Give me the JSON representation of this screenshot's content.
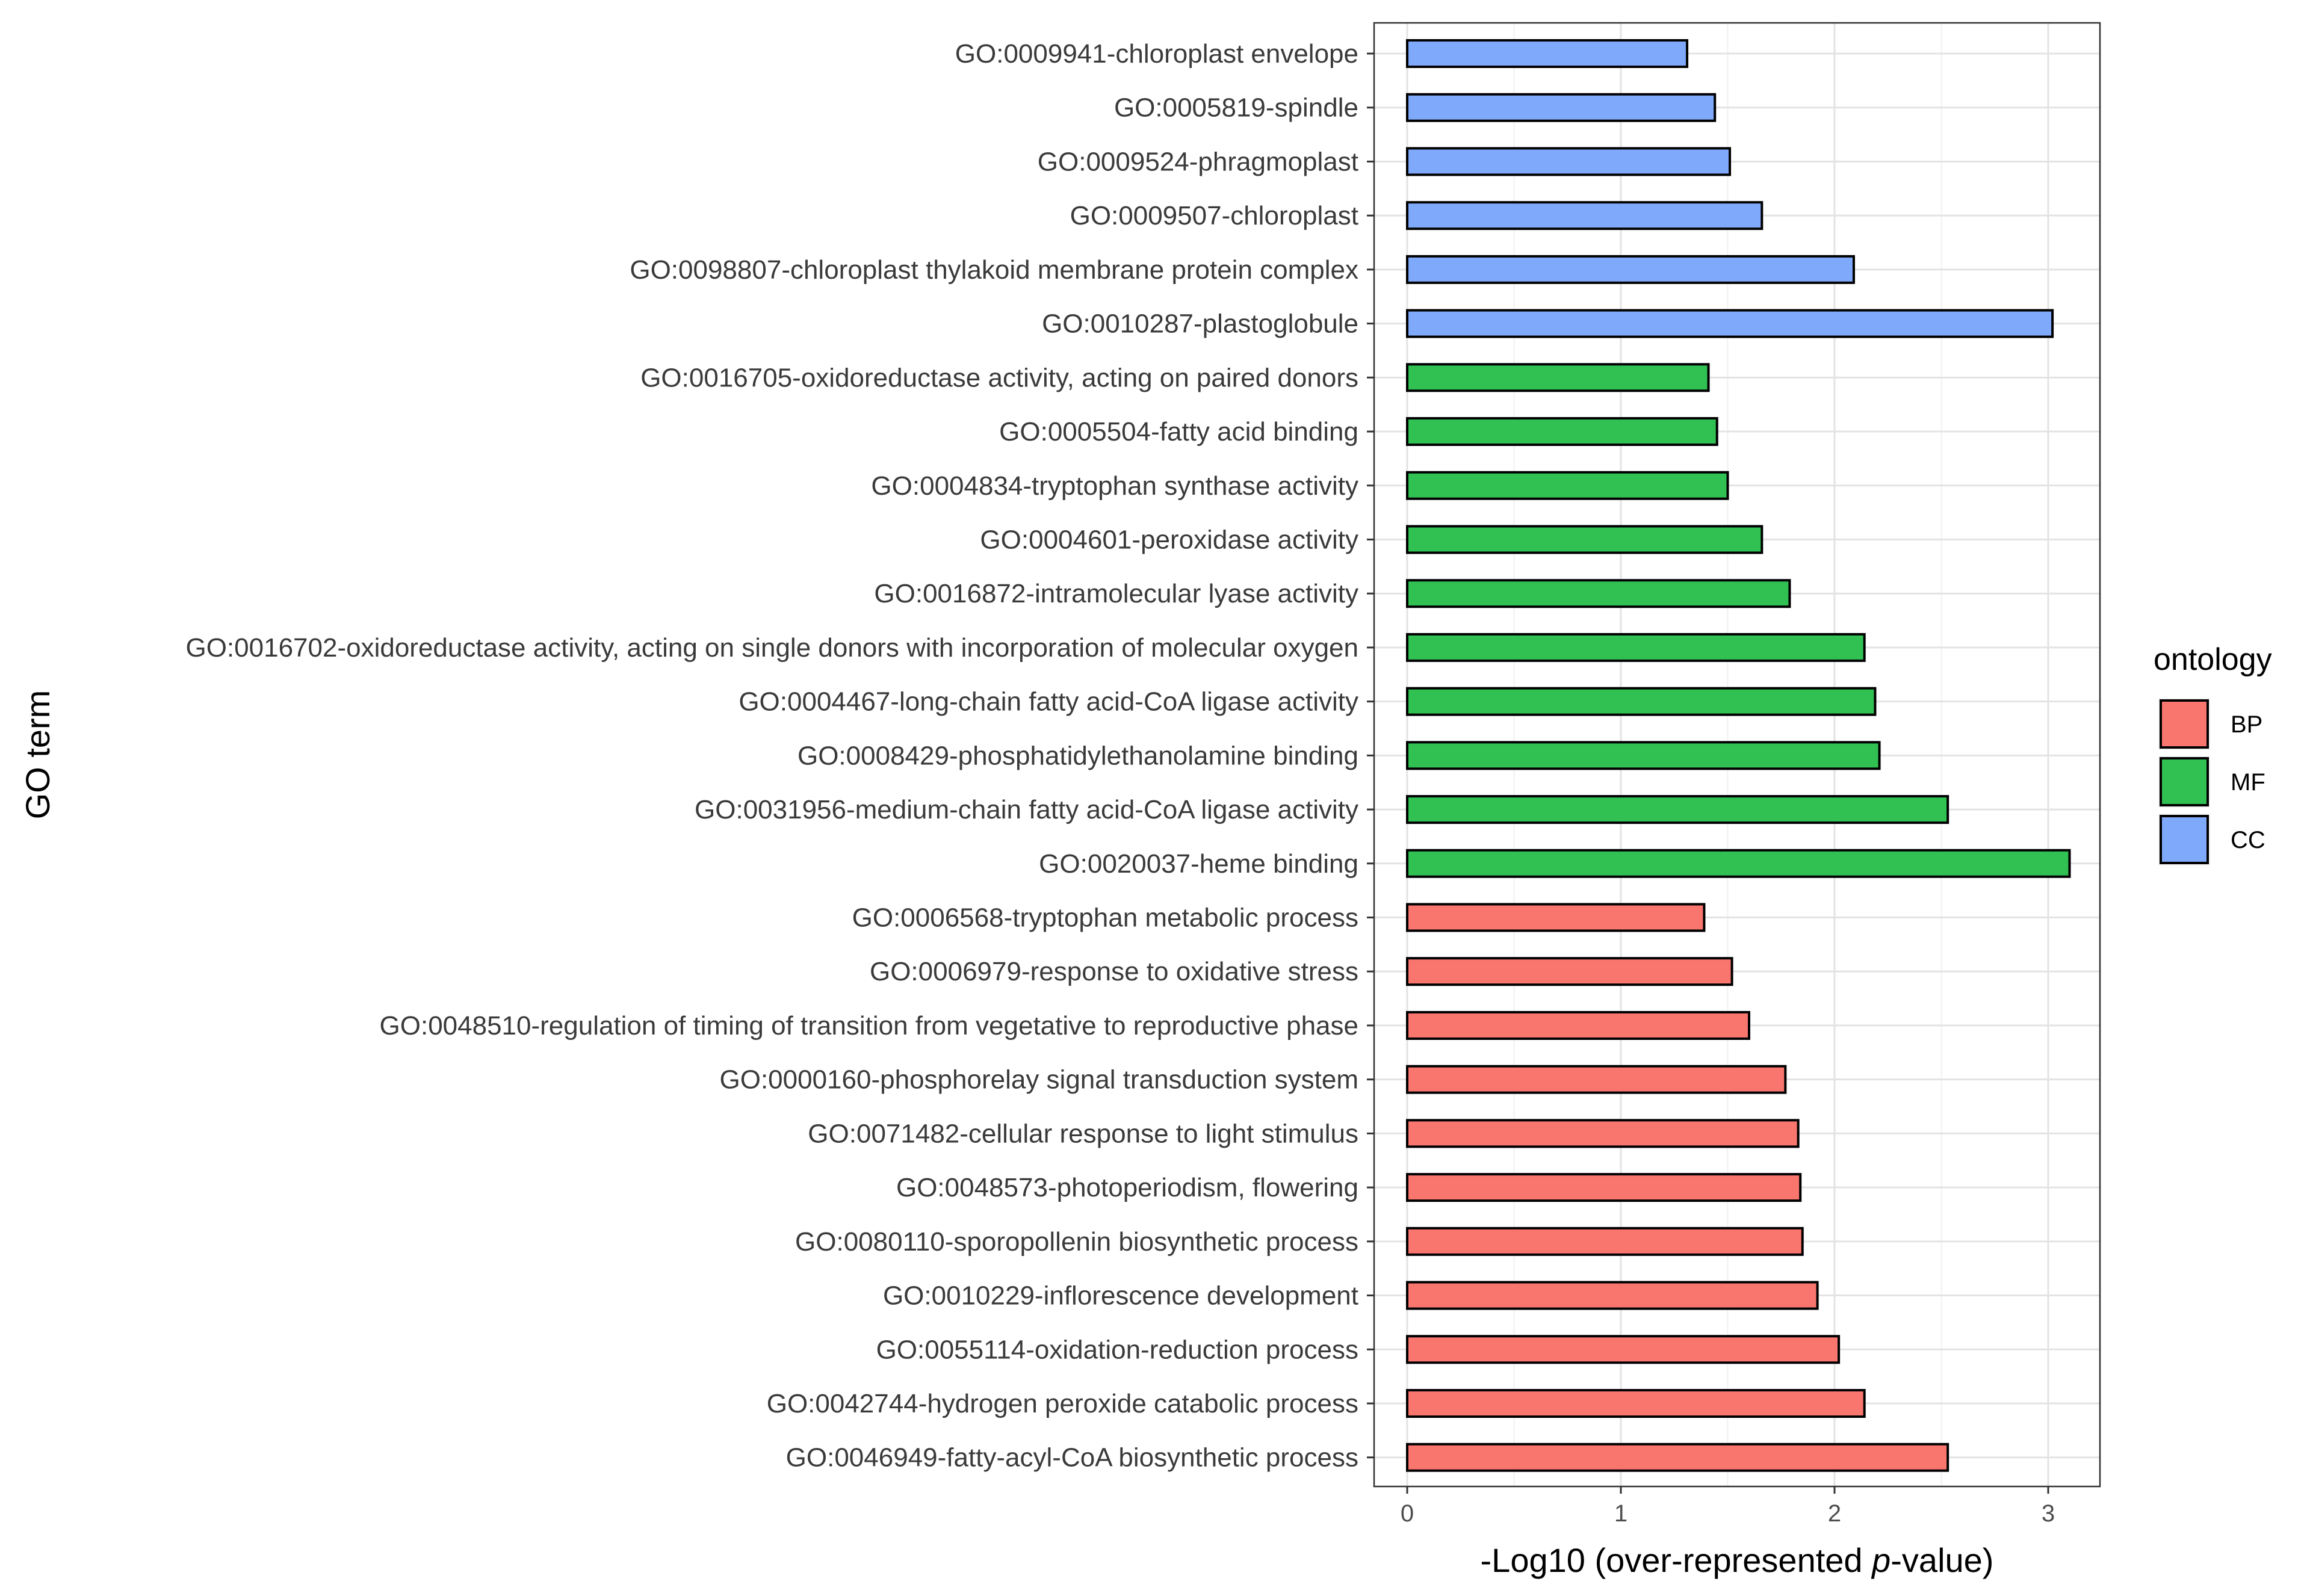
{
  "chart_data": {
    "type": "bar",
    "orientation": "horizontal",
    "xlabel_prefix": "-Log10 (over-represented ",
    "xlabel_italic": "p",
    "xlabel_suffix": "-value)",
    "ylabel": "GO term",
    "xlim": [
      -0.16,
      3.26
    ],
    "xticks": [
      0,
      1,
      2,
      3
    ],
    "grid": true,
    "legend": {
      "title": "ontology",
      "position": "right",
      "entries": [
        {
          "label": "BP",
          "color": "#F8766D"
        },
        {
          "label": "MF",
          "color": "#31C052"
        },
        {
          "label": "CC",
          "color": "#7FA9FA"
        }
      ]
    },
    "bars": [
      {
        "term": "GO:0009941-chloroplast envelope",
        "ontology": "CC",
        "value": 1.31
      },
      {
        "term": "GO:0005819-spindle",
        "ontology": "CC",
        "value": 1.44
      },
      {
        "term": "GO:0009524-phragmoplast",
        "ontology": "CC",
        "value": 1.51
      },
      {
        "term": "GO:0009507-chloroplast",
        "ontology": "CC",
        "value": 1.66
      },
      {
        "term": "GO:0098807-chloroplast thylakoid membrane protein complex",
        "ontology": "CC",
        "value": 2.09
      },
      {
        "term": "GO:0010287-plastoglobule",
        "ontology": "CC",
        "value": 3.02
      },
      {
        "term": "GO:0016705-oxidoreductase activity, acting on paired donors",
        "ontology": "MF",
        "value": 1.41
      },
      {
        "term": "GO:0005504-fatty acid binding",
        "ontology": "MF",
        "value": 1.45
      },
      {
        "term": "GO:0004834-tryptophan synthase activity",
        "ontology": "MF",
        "value": 1.5
      },
      {
        "term": "GO:0004601-peroxidase activity",
        "ontology": "MF",
        "value": 1.66
      },
      {
        "term": "GO:0016872-intramolecular lyase activity",
        "ontology": "MF",
        "value": 1.79
      },
      {
        "term": "GO:0016702-oxidoreductase activity, acting on single donors with incorporation of molecular oxygen",
        "ontology": "MF",
        "value": 2.14
      },
      {
        "term": "GO:0004467-long-chain fatty acid-CoA ligase activity",
        "ontology": "MF",
        "value": 2.19
      },
      {
        "term": "GO:0008429-phosphatidylethanolamine binding",
        "ontology": "MF",
        "value": 2.21
      },
      {
        "term": "GO:0031956-medium-chain fatty acid-CoA ligase activity",
        "ontology": "MF",
        "value": 2.53
      },
      {
        "term": "GO:0020037-heme binding",
        "ontology": "MF",
        "value": 3.1
      },
      {
        "term": "GO:0006568-tryptophan metabolic process",
        "ontology": "BP",
        "value": 1.39
      },
      {
        "term": "GO:0006979-response to oxidative stress",
        "ontology": "BP",
        "value": 1.52
      },
      {
        "term": "GO:0048510-regulation of timing of transition from vegetative to reproductive phase",
        "ontology": "BP",
        "value": 1.6
      },
      {
        "term": "GO:0000160-phosphorelay signal transduction system",
        "ontology": "BP",
        "value": 1.77
      },
      {
        "term": "GO:0071482-cellular response to light stimulus",
        "ontology": "BP",
        "value": 1.83
      },
      {
        "term": "GO:0048573-photoperiodism, flowering",
        "ontology": "BP",
        "value": 1.84
      },
      {
        "term": "GO:0080110-sporopollenin biosynthetic process",
        "ontology": "BP",
        "value": 1.85
      },
      {
        "term": "GO:0010229-inflorescence development",
        "ontology": "BP",
        "value": 1.92
      },
      {
        "term": "GO:0055114-oxidation-reduction process",
        "ontology": "BP",
        "value": 2.02
      },
      {
        "term": "GO:0042744-hydrogen peroxide catabolic process",
        "ontology": "BP",
        "value": 2.14
      },
      {
        "term": "GO:0046949-fatty-acyl-CoA biosynthetic process",
        "ontology": "BP",
        "value": 2.53
      }
    ]
  }
}
